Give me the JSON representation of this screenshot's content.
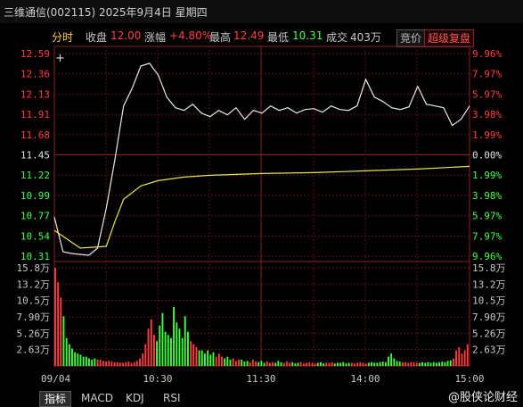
{
  "header": {
    "title": "三维通信(002115) 2025年9月4日 星期四"
  },
  "info": {
    "mode": "分时",
    "close_label": "收盘",
    "close_value": "12.00",
    "change_label": "涨幅",
    "change_value": "+4.80%",
    "high_label": "最高",
    "high_value": "12.49",
    "low_label": "最低",
    "low_value": "10.31",
    "volume_label": "成交",
    "volume_value": "403万",
    "auction_button": "竞价",
    "super_button": "超级复盘"
  },
  "axes": {
    "price_left": [
      "12.59",
      "12.36",
      "12.13",
      "11.91",
      "11.68",
      "11.45",
      "11.22",
      "10.99",
      "10.77",
      "10.54",
      "10.31"
    ],
    "percent_right": [
      "9.96%",
      "7.97%",
      "5.97%",
      "3.98%",
      "1.99%",
      "0.00%",
      "1.99%",
      "3.98%",
      "5.97%",
      "7.97%",
      "9.96%"
    ],
    "volume_left": [
      "15.8万",
      "13.2万",
      "10.5万",
      "7.90万",
      "5.26万",
      "2.63万"
    ],
    "volume_right": [
      "15.8万",
      "13.2万",
      "10.5万",
      "7.90万",
      "5.26万",
      "2.63万"
    ],
    "time_labels": [
      "09/04",
      "10:30",
      "11:30",
      "14:00",
      "15:00"
    ]
  },
  "colors": {
    "up": "#ff3c3c",
    "down": "#3cff3c",
    "neutral": "#e0e0e0",
    "price_line": "#e8e8e8",
    "avg_line": "#e6e64a",
    "grid": "#5a1414"
  },
  "chart_data": {
    "type": "line",
    "title": "",
    "xlabel": "",
    "ylabel": "",
    "prev_close": 11.45,
    "ylim": [
      10.31,
      12.59
    ],
    "x_range": [
      "09:30",
      "15:00"
    ],
    "series": [
      {
        "x": [
          "09:30",
          "09:35",
          "09:40",
          "09:45",
          "09:50",
          "09:55",
          "10:00",
          "10:05",
          "10:10",
          "10:15",
          "10:20",
          "10:25",
          "10:30",
          "10:35",
          "10:40",
          "10:45",
          "10:50",
          "10:55",
          "11:00",
          "11:05",
          "11:10",
          "11:15",
          "11:20",
          "11:25",
          "11:30",
          "13:05",
          "13:10",
          "13:15",
          "13:20",
          "13:25",
          "13:30",
          "13:35",
          "13:40",
          "13:45",
          "13:50",
          "13:55",
          "14:00",
          "14:05",
          "14:10",
          "14:15",
          "14:20",
          "14:25",
          "14:30",
          "14:35",
          "14:40",
          "14:45",
          "14:50",
          "14:55",
          "15:00"
        ],
        "values": [
          10.75,
          10.36,
          10.34,
          10.33,
          10.32,
          10.4,
          10.85,
          11.4,
          12.0,
          12.2,
          12.45,
          12.48,
          12.35,
          12.1,
          11.98,
          11.95,
          12.02,
          11.92,
          11.88,
          11.95,
          11.9,
          11.98,
          11.85,
          11.95,
          11.92,
          12.0,
          11.95,
          11.98,
          11.92,
          11.96,
          11.97,
          11.93,
          12.0,
          11.96,
          11.95,
          12.0,
          12.3,
          12.1,
          12.05,
          11.98,
          11.96,
          11.99,
          12.22,
          12.02,
          12.0,
          11.98,
          11.78,
          11.85,
          12.0
        ]
      },
      {
        "x": [
          "09:30",
          "09:45",
          "10:00",
          "10:05",
          "10:10",
          "10:20",
          "10:30",
          "10:45",
          "11:00",
          "11:30",
          "13:30",
          "14:00",
          "14:30",
          "15:00"
        ],
        "values": [
          10.6,
          10.4,
          10.42,
          10.7,
          10.95,
          11.1,
          11.16,
          11.2,
          11.22,
          11.24,
          11.25,
          11.27,
          11.29,
          11.32
        ]
      }
    ],
    "volume": {
      "unit": "万",
      "ylim": [
        0,
        15.8
      ],
      "values": [
        15.8,
        13.5,
        11.0,
        8.0,
        4.5,
        3.5,
        2.8,
        2.2,
        2.0,
        1.8,
        1.5,
        1.5,
        1.2,
        1.0,
        1.2,
        1.0,
        1.0,
        0.8,
        0.7,
        0.8,
        0.7,
        0.6,
        0.6,
        0.5,
        0.5,
        0.6,
        0.7,
        0.5,
        0.6,
        0.8,
        1.2,
        2.0,
        3.5,
        6.0,
        7.5,
        5.0,
        4.0,
        6.5,
        8.5,
        5.5,
        5.0,
        4.5,
        9.5,
        7.0,
        6.0,
        4.5,
        8.0,
        5.5,
        4.0,
        3.5,
        3.0,
        2.5,
        2.5,
        2.0,
        2.5,
        1.8,
        2.2,
        1.5,
        2.0,
        1.5,
        1.2,
        1.5,
        1.0,
        1.2,
        0.8,
        1.0,
        1.0,
        0.7,
        0.8,
        0.6,
        1.0,
        0.7,
        0.6,
        0.8,
        0.5,
        0.7,
        0.5,
        0.6,
        0.5,
        0.8,
        0.6,
        0.5,
        0.7,
        0.5,
        0.6,
        0.4,
        0.5,
        0.6,
        0.4,
        0.5,
        0.6,
        0.5,
        0.4,
        0.5,
        0.6,
        0.4,
        0.5,
        0.5,
        0.6,
        0.4,
        0.5,
        0.5,
        0.6,
        0.4,
        0.5,
        0.5,
        0.4,
        0.5,
        0.6,
        0.5,
        0.4,
        0.5,
        0.6,
        0.5,
        0.5,
        0.6,
        0.7,
        0.6,
        1.5,
        2.0,
        1.2,
        0.8,
        0.7,
        0.6,
        0.6,
        0.5,
        0.6,
        0.6,
        0.5,
        0.5,
        0.6,
        0.5,
        0.6,
        0.5,
        0.6,
        0.5,
        0.6,
        0.7,
        0.6,
        0.8,
        0.9,
        1.2,
        2.5,
        3.0,
        2.0,
        2.5,
        3.5
      ]
    }
  },
  "tabs": [
    "指标",
    "MACD",
    "KDJ",
    "RSI"
  ],
  "watermark": "@股侠论财经"
}
